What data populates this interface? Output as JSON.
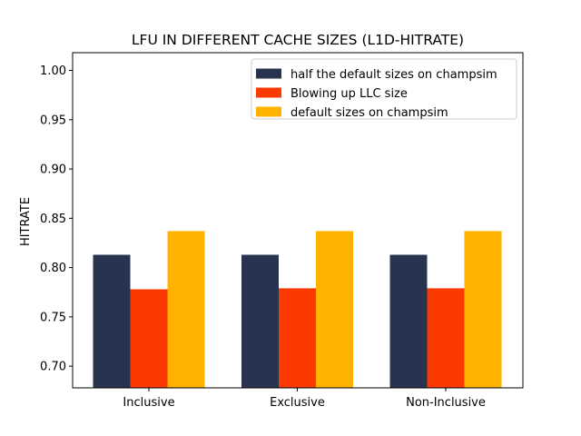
{
  "chart_data": {
    "type": "bar",
    "title": "LFU IN DIFFERENT CACHE SIZES (L1D-HITRATE)",
    "xlabel": "",
    "ylabel": "HITRATE",
    "categories": [
      "Inclusive",
      "Exclusive",
      "Non-Inclusive"
    ],
    "series": [
      {
        "name": "half the default sizes on champsim",
        "color": "#283350",
        "values": [
          0.813,
          0.813,
          0.813
        ]
      },
      {
        "name": "Blowing up LLC size",
        "color": "#fa3a00",
        "values": [
          0.778,
          0.779,
          0.779
        ]
      },
      {
        "name": "default sizes on champsim",
        "color": "#ffb300",
        "values": [
          0.837,
          0.837,
          0.837
        ]
      }
    ],
    "ylim": [
      0.678,
      1.018
    ],
    "yticks": [
      "0.70",
      "0.75",
      "0.80",
      "0.85",
      "0.90",
      "0.95",
      "1.00"
    ],
    "grid": false,
    "legend_position": "top-right"
  }
}
